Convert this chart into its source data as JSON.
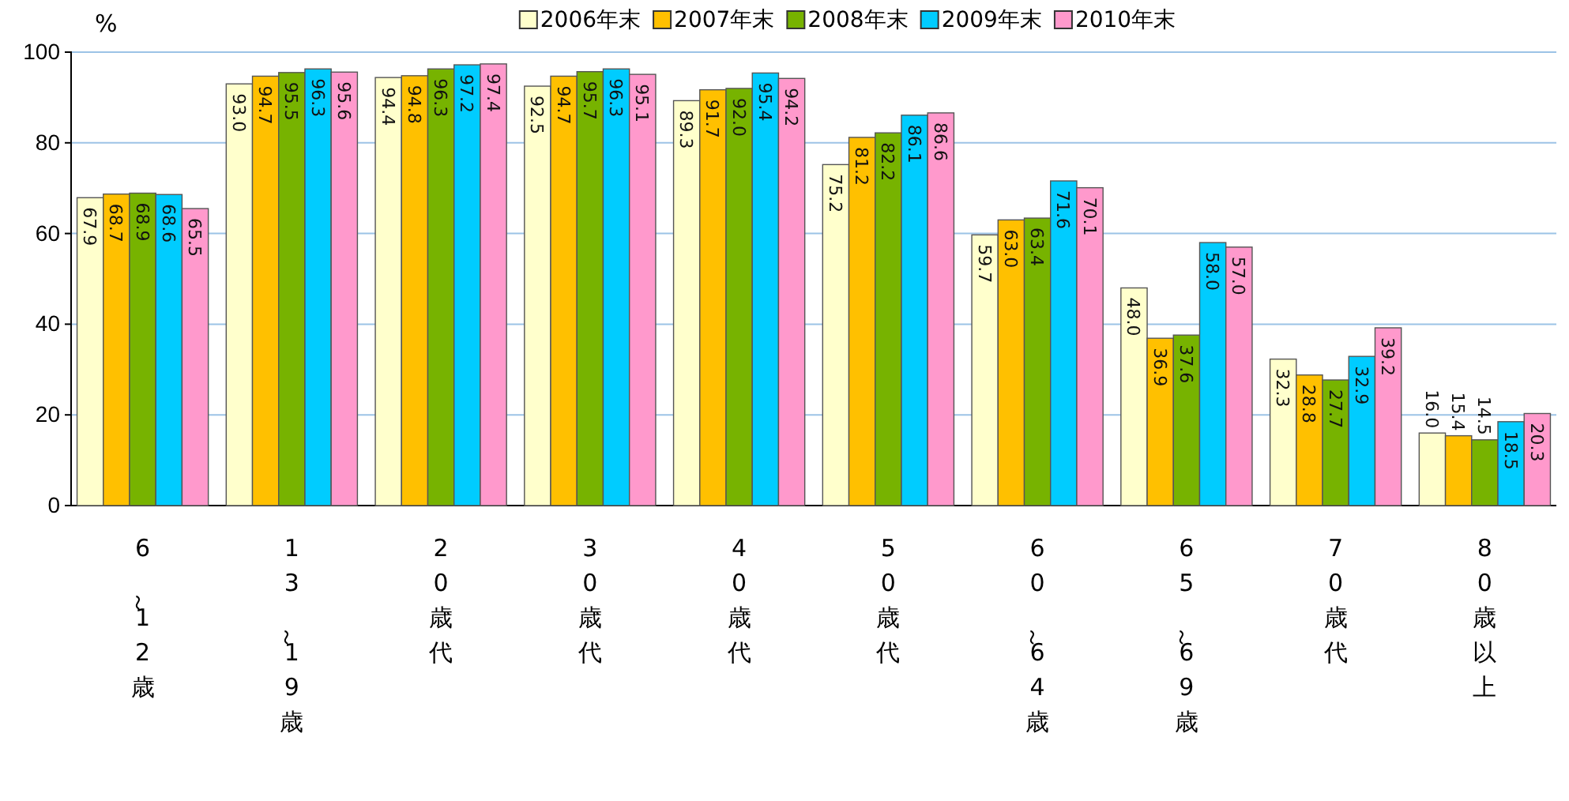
{
  "chart_data": {
    "type": "bar",
    "ylabel": "%",
    "categories": [
      "6～12歳",
      "13～19歳",
      "20歳代",
      "30歳代",
      "40歳代",
      "50歳代",
      "60～64歳",
      "65～69歳",
      "70歳代",
      "80歳以上"
    ],
    "series": [
      {
        "name": "2006年末",
        "color": "#ffffcc",
        "values": [
          67.9,
          93.0,
          94.4,
          92.5,
          89.3,
          75.2,
          59.7,
          48.0,
          32.3,
          16.0
        ],
        "value_labels": [
          "67.9",
          "93.0",
          "94.4",
          "92.5",
          "89.3",
          "75.2",
          "59.7",
          "48.0",
          "32.3",
          "16.0"
        ]
      },
      {
        "name": "2007年末",
        "color": "#ffc000",
        "values": [
          68.7,
          94.7,
          94.8,
          94.7,
          91.7,
          81.2,
          63.0,
          36.9,
          28.8,
          15.4
        ],
        "value_labels": [
          "68.7",
          "94.7",
          "94.8",
          "94.7",
          "91.7",
          "81.2",
          "63.0",
          "36.9",
          "28.8",
          "15.4"
        ]
      },
      {
        "name": "2008年末",
        "color": "#77b300",
        "values": [
          68.9,
          95.5,
          96.3,
          95.7,
          92.0,
          82.2,
          63.4,
          37.6,
          27.7,
          14.5
        ],
        "value_labels": [
          "68.9",
          "95.5",
          "96.3",
          "95.7",
          "92.0",
          "82.2",
          "63.4",
          "37.6",
          "27.7",
          "14.5"
        ]
      },
      {
        "name": "2009年末",
        "color": "#00ccff",
        "values": [
          68.6,
          96.3,
          97.2,
          96.3,
          95.4,
          86.1,
          71.6,
          58.0,
          32.9,
          18.5
        ],
        "value_labels": [
          "68.6",
          "96.3",
          "97.2",
          "96.3",
          "95.4",
          "86.1",
          "71.6",
          "58.0",
          "32.9",
          "18.5"
        ]
      },
      {
        "name": "2010年末",
        "color": "#ff99cc",
        "values": [
          65.5,
          95.6,
          97.4,
          95.1,
          94.2,
          86.6,
          70.1,
          57.0,
          39.2,
          20.3
        ],
        "value_labels": [
          "65.5",
          "95.6",
          "97.4",
          "95.1",
          "94.2",
          "86.6",
          "70.1",
          "57.0",
          "39.2",
          "20.3"
        ]
      }
    ],
    "ylim": [
      0,
      100
    ],
    "yticks": [
      0,
      20,
      40,
      60,
      80,
      100
    ],
    "grid": "y",
    "legend": "top"
  }
}
